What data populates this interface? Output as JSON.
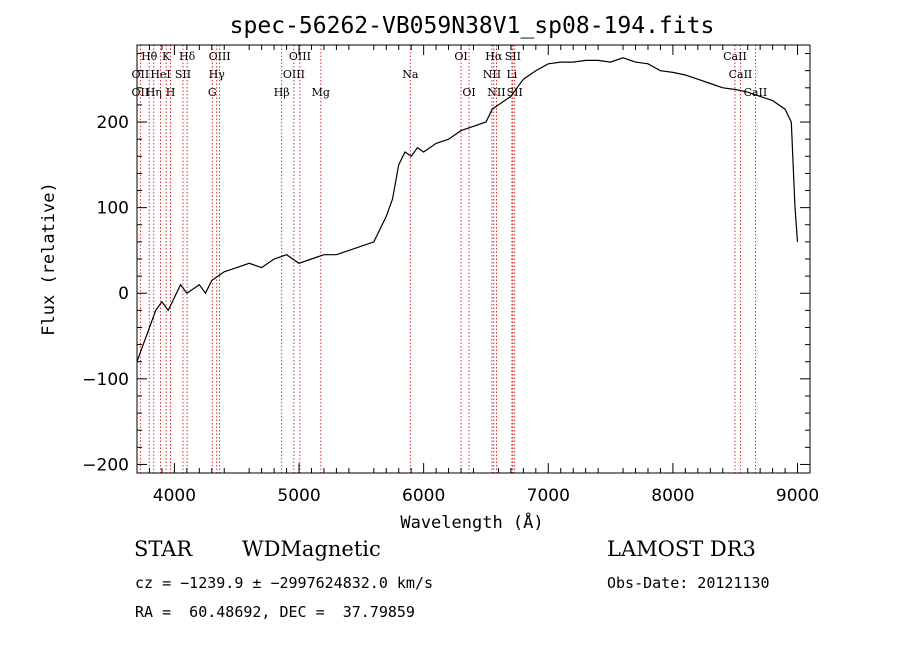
{
  "chart_data": {
    "type": "line",
    "title": "spec-56262-VB059N38V1_sp08-194.fits",
    "xlabel": "Wavelength (Å)",
    "ylabel": "Flux (relative)",
    "xlim": [
      3700,
      9100
    ],
    "ylim": [
      -210,
      290
    ],
    "xticks": [
      4000,
      5000,
      6000,
      7000,
      8000,
      9000
    ],
    "yticks": [
      -200,
      -100,
      0,
      100,
      200
    ],
    "series": [
      {
        "name": "flux",
        "x": [
          3700,
          3750,
          3800,
          3850,
          3900,
          3950,
          4000,
          4050,
          4100,
          4150,
          4200,
          4250,
          4300,
          4350,
          4400,
          4500,
          4600,
          4700,
          4800,
          4900,
          5000,
          5100,
          5200,
          5300,
          5400,
          5500,
          5600,
          5700,
          5750,
          5800,
          5850,
          5900,
          5950,
          6000,
          6100,
          6200,
          6300,
          6400,
          6500,
          6550,
          6600,
          6700,
          6750,
          6800,
          6900,
          7000,
          7100,
          7200,
          7300,
          7400,
          7500,
          7600,
          7700,
          7800,
          7900,
          8000,
          8100,
          8200,
          8300,
          8400,
          8500,
          8600,
          8700,
          8800,
          8900,
          8950,
          8980,
          9000
        ],
        "y": [
          -80,
          -60,
          -40,
          -20,
          -10,
          -20,
          -5,
          10,
          0,
          5,
          10,
          0,
          15,
          20,
          25,
          30,
          35,
          30,
          40,
          45,
          35,
          40,
          45,
          45,
          50,
          55,
          60,
          90,
          110,
          150,
          165,
          160,
          170,
          165,
          175,
          180,
          190,
          195,
          200,
          215,
          220,
          230,
          240,
          250,
          260,
          268,
          270,
          270,
          272,
          272,
          270,
          275,
          270,
          268,
          260,
          258,
          255,
          250,
          245,
          240,
          238,
          235,
          230,
          225,
          215,
          200,
          100,
          60
        ]
      }
    ],
    "line_labels": [
      {
        "text": "Hθ",
        "wavelength": 3798,
        "row": 1
      },
      {
        "text": "OII",
        "wavelength": 3727,
        "row": 2
      },
      {
        "text": "OII",
        "wavelength": 3727,
        "row": 3
      },
      {
        "text": "K",
        "wavelength": 3934,
        "row": 1
      },
      {
        "text": "HeI",
        "wavelength": 3889,
        "row": 2
      },
      {
        "text": "Hη",
        "wavelength": 3835,
        "row": 3
      },
      {
        "text": "SII",
        "wavelength": 4069,
        "row": 2
      },
      {
        "text": "H",
        "wavelength": 3969,
        "row": 3
      },
      {
        "text": "Hδ",
        "wavelength": 4102,
        "row": 1
      },
      {
        "text": "OIII",
        "wavelength": 4363,
        "row": 1
      },
      {
        "text": "Hγ",
        "wavelength": 4340,
        "row": 2
      },
      {
        "text": "G",
        "wavelength": 4304,
        "row": 3
      },
      {
        "text": "OIII",
        "wavelength": 5007,
        "row": 1
      },
      {
        "text": "OIII",
        "wavelength": 4959,
        "row": 2
      },
      {
        "text": "Hβ",
        "wavelength": 4861,
        "row": 3
      },
      {
        "text": "Mg",
        "wavelength": 5175,
        "row": 3
      },
      {
        "text": "Na",
        "wavelength": 5893,
        "row": 2
      },
      {
        "text": "OI",
        "wavelength": 6300,
        "row": 1
      },
      {
        "text": "OI",
        "wavelength": 6364,
        "row": 3
      },
      {
        "text": "Hα",
        "wavelength": 6563,
        "row": 1
      },
      {
        "text": "SII",
        "wavelength": 6716,
        "row": 1
      },
      {
        "text": "NII",
        "wavelength": 6548,
        "row": 2
      },
      {
        "text": "Li",
        "wavelength": 6708,
        "row": 2
      },
      {
        "text": "NII",
        "wavelength": 6584,
        "row": 3
      },
      {
        "text": "SII",
        "wavelength": 6731,
        "row": 3
      },
      {
        "text": "CaII",
        "wavelength": 8498,
        "row": 1
      },
      {
        "text": "CaII",
        "wavelength": 8542,
        "row": 2
      },
      {
        "text": "CaII",
        "wavelength": 8662,
        "row": 3
      }
    ],
    "line_markers": [
      3727,
      3798,
      3835,
      3889,
      3934,
      3969,
      4069,
      4102,
      4304,
      4340,
      4363,
      4861,
      4959,
      5007,
      5175,
      5893,
      6300,
      6364,
      6548,
      6563,
      6584,
      6708,
      6716,
      6731,
      8498,
      8542,
      8662
    ]
  },
  "info": {
    "class_label": "STAR",
    "subclass": "WDMagnetic",
    "survey": "LAMOST DR3",
    "cz_line": "cz = −1239.9 ± −2997624832.0 km/s",
    "obs_date": "Obs-Date: 20121130",
    "coords": "RA =  60.48692, DEC =  37.79859"
  }
}
